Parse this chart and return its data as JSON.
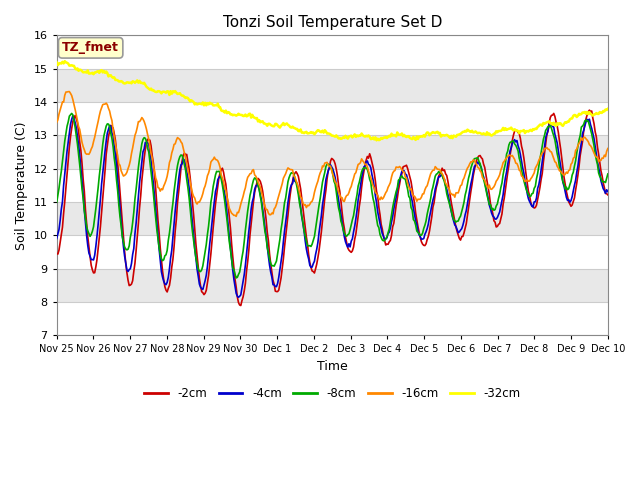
{
  "title": "Tonzi Soil Temperature Set D",
  "xlabel": "Time",
  "ylabel": "Soil Temperature (C)",
  "ylim": [
    7.0,
    16.0
  ],
  "yticks": [
    7.0,
    8.0,
    9.0,
    10.0,
    11.0,
    12.0,
    13.0,
    14.0,
    15.0,
    16.0
  ],
  "figure_bg": "#ffffff",
  "plot_bg": "#e8e8e8",
  "band_white": "#ffffff",
  "band_gray": "#e8e8e8",
  "annotation_box": {
    "text": "TZ_fmet",
    "text_color": "#8b0000",
    "box_color": "#ffffcc",
    "edge_color": "#999999"
  },
  "series": {
    "-2cm": {
      "color": "#cc0000",
      "lw": 1.2
    },
    "-4cm": {
      "color": "#0000cc",
      "lw": 1.2
    },
    "-8cm": {
      "color": "#00aa00",
      "lw": 1.2
    },
    "-16cm": {
      "color": "#ff8800",
      "lw": 1.2
    },
    "-32cm": {
      "color": "#ffff00",
      "lw": 1.8
    }
  },
  "xtick_labels": [
    "Nov 25",
    "Nov 26",
    "Nov 27",
    "Nov 28",
    "Nov 29",
    "Nov 30",
    "Dec 1",
    "Dec 2",
    "Dec 3",
    "Dec 4",
    "Dec 5",
    "Dec 6",
    "Dec 7",
    "Dec 8",
    "Dec 9",
    "Dec 10"
  ],
  "n_points": 480
}
